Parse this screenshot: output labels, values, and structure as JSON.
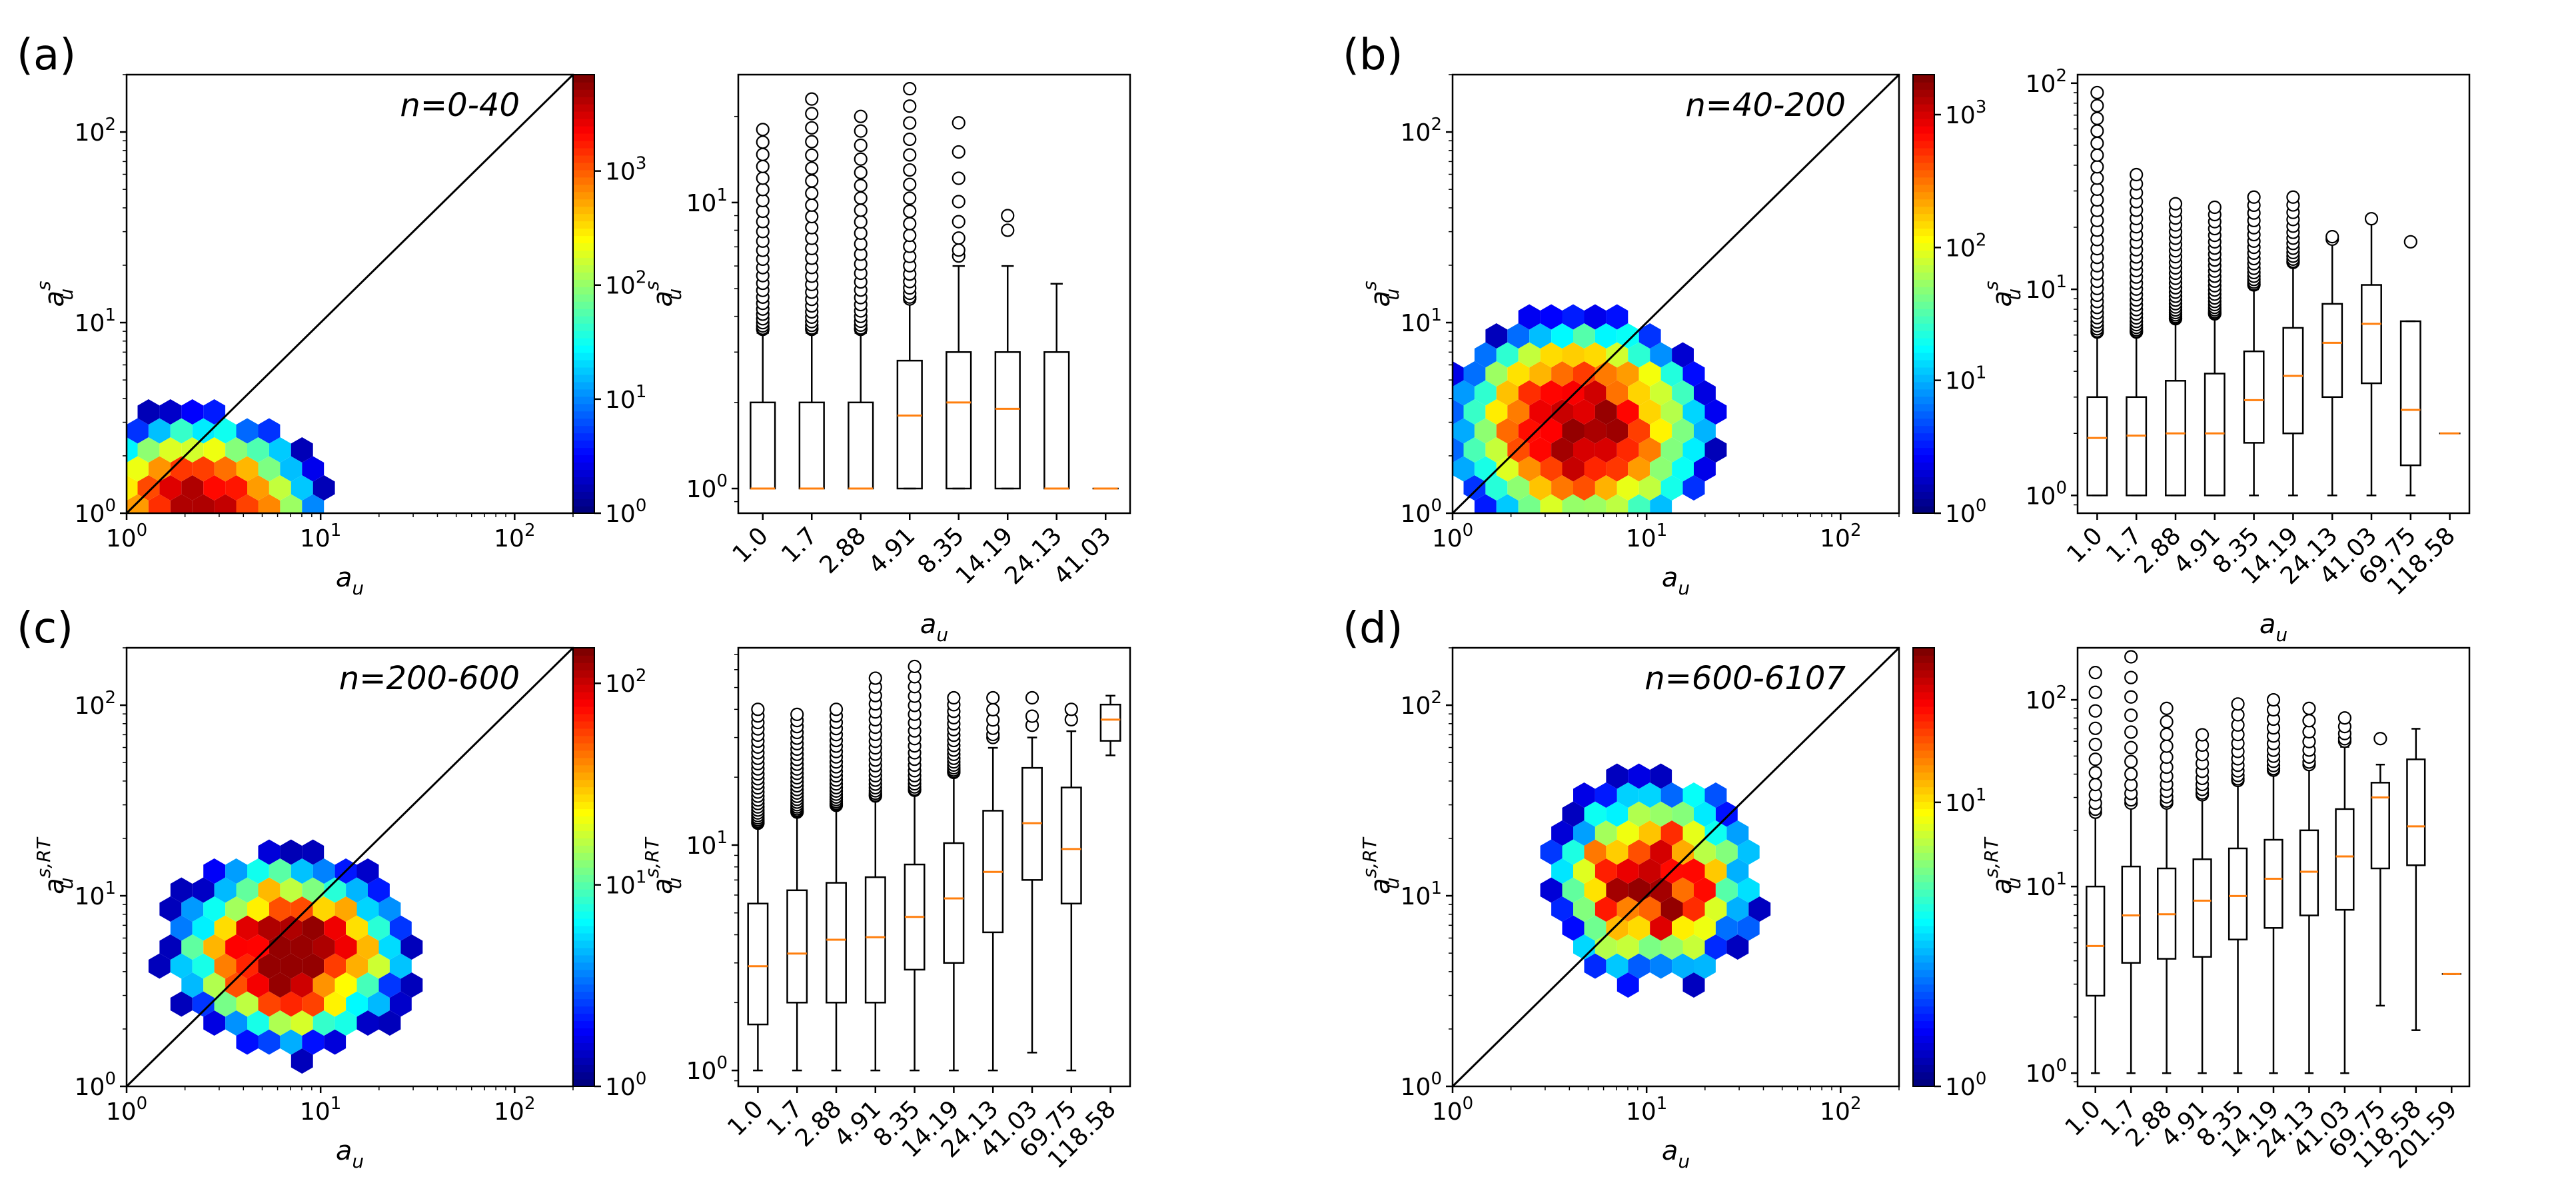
{
  "panels": [
    {
      "label": "(a)",
      "range": "n=0-40",
      "hex_xlabel": "a",
      "hex_xsub": "u",
      "hex_ylabel": "a",
      "hex_ysub": "u",
      "hex_ysup": "s",
      "box_xlabel": "a",
      "box_xsub": "u",
      "box_ylabel": "a",
      "box_ysub": "u",
      "box_ysup": "s"
    },
    {
      "label": "(b)",
      "range": "n=40-200",
      "hex_xlabel": "a",
      "hex_xsub": "u",
      "hex_ylabel": "a",
      "hex_ysub": "u",
      "hex_ysup": "s",
      "box_xlabel": "a",
      "box_xsub": "u",
      "box_ylabel": "a",
      "box_ysub": "u",
      "box_ysup": "s"
    },
    {
      "label": "(c)",
      "range": "n=200-600",
      "hex_xlabel": "a",
      "hex_xsub": "u",
      "hex_ylabel": "a",
      "hex_ysub": "u",
      "hex_ysup": "s,RT",
      "box_xlabel": "a",
      "box_xsub": "u",
      "box_ylabel": "a",
      "box_ysub": "u",
      "box_ysup": "s,RT"
    },
    {
      "label": "(d)",
      "range": "n=600-6107",
      "hex_xlabel": "a",
      "hex_xsub": "u",
      "hex_ylabel": "a",
      "hex_ysub": "u",
      "hex_ysup": "s,RT",
      "box_xlabel": "a",
      "box_xsub": "u",
      "box_ylabel": "a",
      "box_ysub": "u",
      "box_ysup": "s,RT"
    }
  ],
  "chart_data": [
    {
      "type": "heatmap",
      "subtype": "hexbin",
      "panel": "(a)",
      "title": "n=0-40",
      "xlabel": "a_u",
      "ylabel": "a_u^s",
      "xscale": "log",
      "yscale": "log",
      "xlim": [
        1,
        200
      ],
      "ylim": [
        1,
        200
      ],
      "xticks": [
        {
          "v": 1,
          "b": "10",
          "e": "0"
        },
        {
          "v": 10,
          "b": "10",
          "e": "1"
        },
        {
          "v": 100,
          "b": "10",
          "e": "2"
        }
      ],
      "yticks": [
        {
          "v": 1,
          "b": "10",
          "e": "0"
        },
        {
          "v": 10,
          "b": "10",
          "e": "1"
        },
        {
          "v": 100,
          "b": "10",
          "e": "2"
        }
      ],
      "diagonal": true,
      "colorbar": {
        "colormap": "jet",
        "scale": "log",
        "range": [
          1,
          7000
        ],
        "ticks": [
          {
            "v": 1,
            "b": "10",
            "e": "0"
          },
          {
            "v": 10,
            "b": "10",
            "e": "1"
          },
          {
            "v": 100,
            "b": "10",
            "e": "2"
          },
          {
            "v": 1000,
            "b": "10",
            "e": "3"
          }
        ]
      },
      "density": {
        "cx": 2.4,
        "cy": 1.0,
        "sx": 0.33,
        "sy": 0.28,
        "peak": 7000,
        "xmax": 45,
        "ymax": 24,
        "falloff": 2.0
      }
    },
    {
      "type": "box",
      "panel": "(a)",
      "ylabel": "a_u^s",
      "xlabel": "a_u",
      "yscale": "log",
      "ylim": [
        0.82,
        28
      ],
      "yticks": [
        {
          "v": 1,
          "b": "10",
          "e": "0"
        },
        {
          "v": 10,
          "b": "10",
          "e": "1"
        }
      ],
      "categories": [
        "1.0",
        "1.7",
        "2.88",
        "4.91",
        "8.35",
        "14.19",
        "24.13",
        "41.03"
      ],
      "boxes": [
        {
          "q1": 1,
          "med": 1,
          "q3": 2,
          "wlo": 1,
          "whi": 3.5,
          "ofrom": 3.6,
          "oto": 18,
          "no": 26
        },
        {
          "q1": 1,
          "med": 1,
          "q3": 2,
          "wlo": 1,
          "whi": 3.5,
          "ofrom": 3.6,
          "oto": 23,
          "no": 26
        },
        {
          "q1": 1,
          "med": 1,
          "q3": 2,
          "wlo": 1,
          "whi": 3.5,
          "ofrom": 3.6,
          "oto": 20,
          "no": 24
        },
        {
          "q1": 1,
          "med": 1.8,
          "q3": 2.8,
          "wlo": 1,
          "whi": 4.5,
          "ofrom": 4.6,
          "oto": 25,
          "no": 20
        },
        {
          "q1": 1,
          "med": 2,
          "q3": 3,
          "wlo": 1,
          "whi": 6,
          "ofrom": 6.5,
          "oto": 19,
          "no": 8
        },
        {
          "q1": 1,
          "med": 1.9,
          "q3": 3,
          "wlo": 1,
          "whi": 6,
          "ofrom": 8,
          "oto": 9,
          "no": 2
        },
        {
          "q1": 1,
          "med": 1,
          "q3": 3,
          "wlo": 1,
          "whi": 5.2,
          "ofrom": 0,
          "oto": 0,
          "no": 0
        },
        {
          "q1": 1,
          "med": 1,
          "q3": 1,
          "wlo": 1,
          "whi": 1,
          "ofrom": 0,
          "oto": 0,
          "no": 0
        }
      ]
    },
    {
      "type": "heatmap",
      "subtype": "hexbin",
      "panel": "(b)",
      "title": "n=40-200",
      "xlabel": "a_u",
      "ylabel": "a_u^s",
      "xscale": "log",
      "yscale": "log",
      "xlim": [
        1,
        200
      ],
      "ylim": [
        1,
        200
      ],
      "xticks": [
        {
          "v": 1,
          "b": "10",
          "e": "0"
        },
        {
          "v": 10,
          "b": "10",
          "e": "1"
        },
        {
          "v": 100,
          "b": "10",
          "e": "2"
        }
      ],
      "yticks": [
        {
          "v": 1,
          "b": "10",
          "e": "0"
        },
        {
          "v": 10,
          "b": "10",
          "e": "1"
        },
        {
          "v": 100,
          "b": "10",
          "e": "2"
        }
      ],
      "diagonal": true,
      "colorbar": {
        "colormap": "jet",
        "scale": "log",
        "range": [
          1,
          2000
        ],
        "ticks": [
          {
            "v": 1,
            "b": "10",
            "e": "0"
          },
          {
            "v": 10,
            "b": "10",
            "e": "1"
          },
          {
            "v": 100,
            "b": "10",
            "e": "2"
          },
          {
            "v": 1000,
            "b": "10",
            "e": "3"
          }
        ]
      },
      "density": {
        "cx": 4.5,
        "cy": 2.8,
        "sx": 0.42,
        "sy": 0.36,
        "peak": 2000,
        "xmax": 100,
        "ymax": 30,
        "falloff": 2.2
      }
    },
    {
      "type": "box",
      "panel": "(b)",
      "ylabel": "a_u^s",
      "xlabel": "a_u",
      "yscale": "log",
      "ylim": [
        0.82,
        110
      ],
      "yticks": [
        {
          "v": 1,
          "b": "10",
          "e": "0"
        },
        {
          "v": 10,
          "b": "10",
          "e": "1"
        },
        {
          "v": 100,
          "b": "10",
          "e": "2"
        }
      ],
      "categories": [
        "1.0",
        "1.7",
        "2.88",
        "4.91",
        "8.35",
        "14.19",
        "24.13",
        "41.03",
        "69.75",
        "118.58"
      ],
      "boxes": [
        {
          "q1": 1,
          "med": 1.9,
          "q3": 3,
          "wlo": 1,
          "whi": 6,
          "ofrom": 6.2,
          "oto": 90,
          "no": 30
        },
        {
          "q1": 1,
          "med": 1.95,
          "q3": 3,
          "wlo": 1,
          "whi": 6,
          "ofrom": 6.2,
          "oto": 36,
          "no": 28
        },
        {
          "q1": 1,
          "med": 2,
          "q3": 3.6,
          "wlo": 1,
          "whi": 7,
          "ofrom": 7.2,
          "oto": 26,
          "no": 26
        },
        {
          "q1": 1,
          "med": 2,
          "q3": 3.9,
          "wlo": 1,
          "whi": 7.5,
          "ofrom": 7.6,
          "oto": 25,
          "no": 24
        },
        {
          "q1": 1.8,
          "med": 2.9,
          "q3": 5,
          "wlo": 1,
          "whi": 10,
          "ofrom": 10.5,
          "oto": 28,
          "no": 18
        },
        {
          "q1": 2,
          "med": 3.8,
          "q3": 6.5,
          "wlo": 1,
          "whi": 13,
          "ofrom": 13.5,
          "oto": 28,
          "no": 14
        },
        {
          "q1": 3,
          "med": 5.5,
          "q3": 8.5,
          "wlo": 1,
          "whi": 17,
          "ofrom": 17.5,
          "oto": 18,
          "no": 2
        },
        {
          "q1": 3.5,
          "med": 6.8,
          "q3": 10.5,
          "wlo": 1,
          "whi": 21,
          "ofrom": 22,
          "oto": 22,
          "no": 1
        },
        {
          "q1": 1.4,
          "med": 2.6,
          "q3": 7,
          "wlo": 1,
          "whi": 7,
          "ofrom": 17,
          "oto": 17,
          "no": 1
        },
        {
          "q1": 2,
          "med": 2,
          "q3": 2,
          "wlo": 2,
          "whi": 2,
          "ofrom": 0,
          "oto": 0,
          "no": 0
        }
      ]
    },
    {
      "type": "heatmap",
      "subtype": "hexbin",
      "panel": "(c)",
      "title": "n=200-600",
      "xlabel": "a_u",
      "ylabel": "a_u^{s,RT}",
      "xscale": "log",
      "yscale": "log",
      "xlim": [
        1,
        200
      ],
      "ylim": [
        1,
        200
      ],
      "xticks": [
        {
          "v": 1,
          "b": "10",
          "e": "0"
        },
        {
          "v": 10,
          "b": "10",
          "e": "1"
        },
        {
          "v": 100,
          "b": "10",
          "e": "2"
        }
      ],
      "yticks": [
        {
          "v": 1,
          "b": "10",
          "e": "0"
        },
        {
          "v": 10,
          "b": "10",
          "e": "1"
        },
        {
          "v": 100,
          "b": "10",
          "e": "2"
        }
      ],
      "diagonal": true,
      "colorbar": {
        "colormap": "jet",
        "scale": "log",
        "range": [
          1,
          150
        ],
        "ticks": [
          {
            "v": 1,
            "b": "10",
            "e": "0"
          },
          {
            "v": 10,
            "b": "10",
            "e": "1"
          },
          {
            "v": 100,
            "b": "10",
            "e": "2"
          }
        ]
      },
      "density": {
        "cx": 7,
        "cy": 5,
        "sx": 0.45,
        "sy": 0.38,
        "peak": 150,
        "xmax": 120,
        "ymax": 40,
        "falloff": 2.2
      }
    },
    {
      "type": "box",
      "panel": "(c)",
      "ylabel": "a_u^{s,RT}",
      "xlabel": "a_u",
      "yscale": "log",
      "ylim": [
        0.85,
        75
      ],
      "yticks": [
        {
          "v": 1,
          "b": "10",
          "e": "0"
        },
        {
          "v": 10,
          "b": "10",
          "e": "1"
        }
      ],
      "categories": [
        "1.0",
        "1.7",
        "2.88",
        "4.91",
        "8.35",
        "14.19",
        "24.13",
        "41.03",
        "69.75",
        "118.58"
      ],
      "boxes": [
        {
          "q1": 1.6,
          "med": 2.9,
          "q3": 5.5,
          "wlo": 1,
          "whi": 12,
          "ofrom": 12.5,
          "oto": 40,
          "no": 28
        },
        {
          "q1": 2,
          "med": 3.3,
          "q3": 6.3,
          "wlo": 1,
          "whi": 13.5,
          "ofrom": 14,
          "oto": 38,
          "no": 26
        },
        {
          "q1": 2,
          "med": 3.8,
          "q3": 6.8,
          "wlo": 1,
          "whi": 14.5,
          "ofrom": 15,
          "oto": 40,
          "no": 24
        },
        {
          "q1": 2,
          "med": 3.9,
          "q3": 7.2,
          "wlo": 1,
          "whi": 16,
          "ofrom": 16.5,
          "oto": 55,
          "no": 22
        },
        {
          "q1": 2.8,
          "med": 4.8,
          "q3": 8.2,
          "wlo": 1,
          "whi": 17,
          "ofrom": 17.5,
          "oto": 62,
          "no": 20
        },
        {
          "q1": 3,
          "med": 5.8,
          "q3": 10.2,
          "wlo": 1,
          "whi": 20.5,
          "ofrom": 21,
          "oto": 45,
          "no": 18
        },
        {
          "q1": 4.1,
          "med": 7.6,
          "q3": 14.2,
          "wlo": 1,
          "whi": 27,
          "ofrom": 30,
          "oto": 45,
          "no": 6
        },
        {
          "q1": 7,
          "med": 12.5,
          "q3": 22,
          "wlo": 1.2,
          "whi": 30,
          "ofrom": 34,
          "oto": 45,
          "no": 3
        },
        {
          "q1": 5.5,
          "med": 9.6,
          "q3": 18,
          "wlo": 1,
          "whi": 32,
          "ofrom": 36,
          "oto": 40,
          "no": 2
        },
        {
          "q1": 29,
          "med": 36,
          "q3": 42,
          "wlo": 25,
          "whi": 46,
          "ofrom": 0,
          "oto": 0,
          "no": 0
        }
      ]
    },
    {
      "type": "heatmap",
      "subtype": "hexbin",
      "panel": "(d)",
      "title": "n=600-6107",
      "xlabel": "a_u",
      "ylabel": "a_u^{s,RT}",
      "xscale": "log",
      "yscale": "log",
      "xlim": [
        1,
        200
      ],
      "ylim": [
        1,
        200
      ],
      "xticks": [
        {
          "v": 1,
          "b": "10",
          "e": "0"
        },
        {
          "v": 10,
          "b": "10",
          "e": "1"
        },
        {
          "v": 100,
          "b": "10",
          "e": "2"
        }
      ],
      "yticks": [
        {
          "v": 1,
          "b": "10",
          "e": "0"
        },
        {
          "v": 10,
          "b": "10",
          "e": "1"
        },
        {
          "v": 100,
          "b": "10",
          "e": "2"
        }
      ],
      "diagonal": true,
      "colorbar": {
        "colormap": "jet",
        "scale": "log",
        "range": [
          1,
          35
        ],
        "ticks": [
          {
            "v": 1,
            "b": "10",
            "e": "0"
          },
          {
            "v": 10,
            "b": "10",
            "e": "1"
          }
        ]
      },
      "density": {
        "cx": 11,
        "cy": 12,
        "sx": 0.42,
        "sy": 0.42,
        "peak": 35,
        "xmax": 150,
        "ymax": 150,
        "falloff": 1.8
      }
    },
    {
      "type": "box",
      "panel": "(d)",
      "ylabel": "a_u^{s,RT}",
      "xlabel": "a_u",
      "yscale": "log",
      "ylim": [
        0.85,
        190
      ],
      "yticks": [
        {
          "v": 1,
          "b": "10",
          "e": "0"
        },
        {
          "v": 10,
          "b": "10",
          "e": "1"
        },
        {
          "v": 100,
          "b": "10",
          "e": "2"
        }
      ],
      "categories": [
        "1.0",
        "1.7",
        "2.88",
        "4.91",
        "8.35",
        "14.19",
        "24.13",
        "41.03",
        "69.75",
        "118.58",
        "201.59"
      ],
      "boxes": [
        {
          "q1": 2.6,
          "med": 4.8,
          "q3": 10,
          "wlo": 1,
          "whi": 24,
          "ofrom": 25,
          "oto": 140,
          "no": 12
        },
        {
          "q1": 3.9,
          "med": 7,
          "q3": 12.8,
          "wlo": 1,
          "whi": 27,
          "ofrom": 28,
          "oto": 170,
          "no": 12
        },
        {
          "q1": 4.1,
          "med": 7.1,
          "q3": 12.5,
          "wlo": 1,
          "whi": 27,
          "ofrom": 28,
          "oto": 90,
          "no": 12
        },
        {
          "q1": 4.2,
          "med": 8.4,
          "q3": 14,
          "wlo": 1,
          "whi": 30,
          "ofrom": 31,
          "oto": 65,
          "no": 10
        },
        {
          "q1": 5.2,
          "med": 8.9,
          "q3": 16,
          "wlo": 1,
          "whi": 35,
          "ofrom": 37,
          "oto": 95,
          "no": 12
        },
        {
          "q1": 6,
          "med": 11,
          "q3": 17.8,
          "wlo": 1,
          "whi": 40,
          "ofrom": 42,
          "oto": 100,
          "no": 12
        },
        {
          "q1": 7,
          "med": 12,
          "q3": 20,
          "wlo": 1,
          "whi": 43,
          "ofrom": 45,
          "oto": 90,
          "no": 8
        },
        {
          "q1": 7.5,
          "med": 14.5,
          "q3": 26,
          "wlo": 1,
          "whi": 56,
          "ofrom": 60,
          "oto": 80,
          "no": 5
        },
        {
          "q1": 12.5,
          "med": 30,
          "q3": 36,
          "wlo": 2.3,
          "whi": 45,
          "ofrom": 62,
          "oto": 62,
          "no": 1
        },
        {
          "q1": 13,
          "med": 21,
          "q3": 48,
          "wlo": 1.7,
          "whi": 70,
          "ofrom": 0,
          "oto": 0,
          "no": 0
        },
        {
          "q1": 3.4,
          "med": 3.4,
          "q3": 3.4,
          "wlo": 3.4,
          "whi": 3.4,
          "ofrom": 0,
          "oto": 0,
          "no": 0
        }
      ]
    }
  ]
}
